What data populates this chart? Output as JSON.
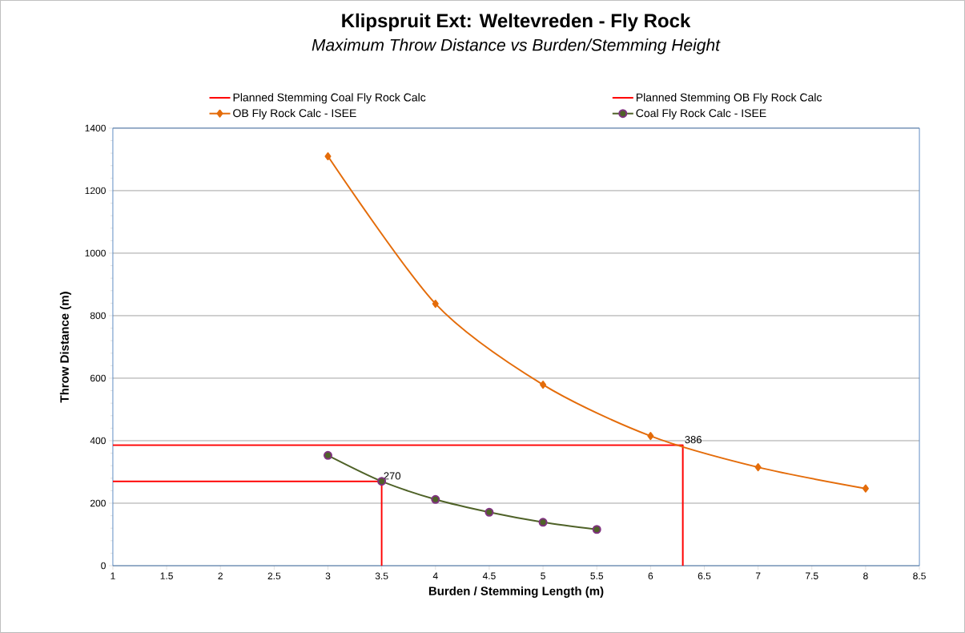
{
  "chart_data": {
    "type": "line",
    "title": "Klipspruit Ext: Weltevreden - Fly Rock",
    "subtitle": "Maximum Throw Distance vs Burden/Stemming Height",
    "xlabel": "Burden  / Stemming Length (m)",
    "ylabel": "Throw Distance (m)",
    "series": [
      {
        "name": "Planned Stemming Coal Fly Rock Calc",
        "color": "#ff0000",
        "x": [
          1,
          3.5,
          3.5
        ],
        "values": [
          270,
          270,
          0
        ],
        "marker": "none"
      },
      {
        "name": "Planned Stemming OB Fly Rock Calc",
        "color": "#ff0000",
        "x": [
          1,
          6.3,
          6.3
        ],
        "values": [
          386,
          386,
          0
        ],
        "marker": "none"
      },
      {
        "name": "OB Fly Rock Calc - ISEE",
        "color": "#e46c0a",
        "x": [
          3,
          4,
          5,
          6,
          7,
          8
        ],
        "values": [
          1310,
          838,
          579,
          415,
          315,
          247
        ],
        "marker": "diamond"
      },
      {
        "name": "Coal Fly Rock Calc - ISEE",
        "color": "#4f6228",
        "x": [
          3,
          3.5,
          4,
          4.5,
          5,
          5.5
        ],
        "values": [
          353,
          270,
          212,
          171,
          139,
          116
        ],
        "marker": "circle"
      }
    ],
    "annotations": [
      {
        "text": "270",
        "x": 3.5,
        "y": 270
      },
      {
        "text": "386",
        "x": 6.3,
        "y": 386
      }
    ],
    "xlim": [
      1,
      8.5
    ],
    "xticks": [
      1,
      1.5,
      2,
      2.5,
      3,
      3.5,
      4,
      4.5,
      5,
      5.5,
      6,
      6.5,
      7,
      7.5,
      8,
      8.5
    ],
    "ylim": [
      0,
      1400
    ],
    "yticks": [
      0,
      200,
      400,
      600,
      800,
      1000,
      1200,
      1400
    ],
    "grid": "y",
    "legend": "top",
    "line_style": "solid"
  }
}
